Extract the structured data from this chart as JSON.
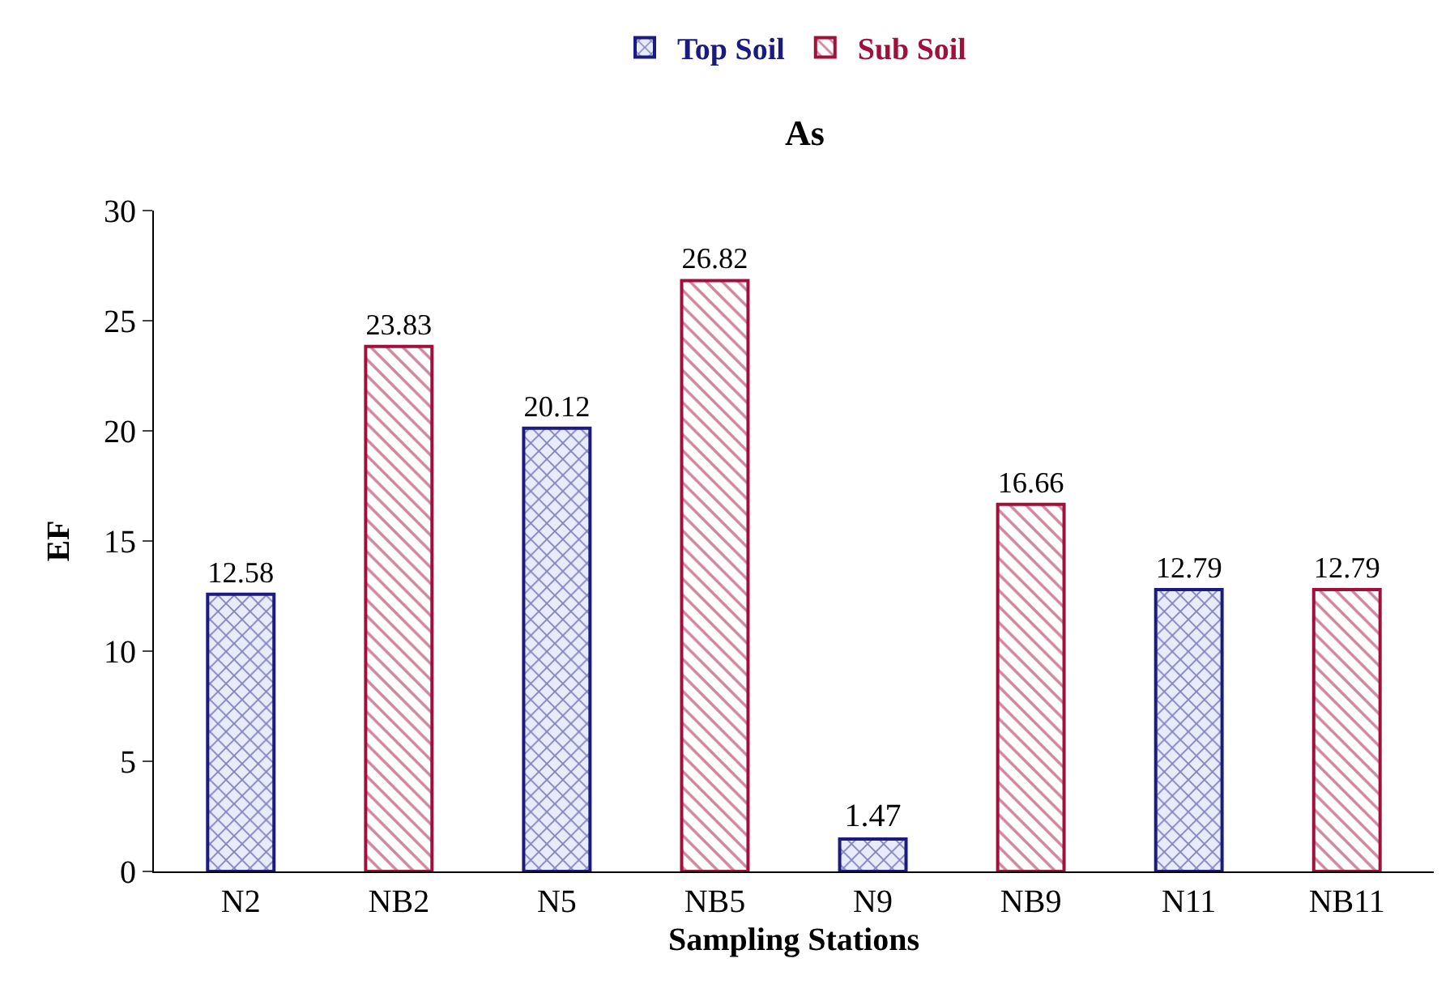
{
  "chart_data": {
    "type": "bar",
    "title": "As",
    "xlabel": "Sampling Stations",
    "ylabel": "EF",
    "categories": [
      "N2",
      "NB2",
      "N5",
      "NB5",
      "N9",
      "NB9",
      "N11",
      "NB11"
    ],
    "series": [
      {
        "name": "Top Soil",
        "color": "#1a1a80",
        "values": [
          12.58,
          null,
          20.12,
          null,
          1.47,
          null,
          12.79,
          null
        ]
      },
      {
        "name": "Sub Soil",
        "color": "#a0103a",
        "values": [
          null,
          23.83,
          null,
          26.82,
          null,
          16.66,
          null,
          12.79
        ]
      }
    ],
    "ylim": [
      0,
      30
    ],
    "yticks": [
      0,
      5,
      10,
      15,
      20,
      25,
      30
    ],
    "legend": "top",
    "data_labels": true
  }
}
